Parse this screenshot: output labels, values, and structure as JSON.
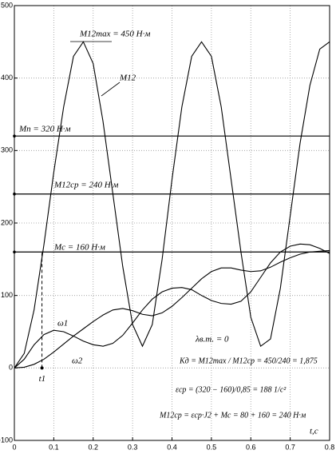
{
  "chart_data": {
    "type": "line",
    "x": [
      0,
      0.025,
      0.05,
      0.075,
      0.1,
      0.125,
      0.15,
      0.175,
      0.2,
      0.225,
      0.25,
      0.275,
      0.3,
      0.325,
      0.35,
      0.375,
      0.4,
      0.425,
      0.45,
      0.475,
      0.5,
      0.525,
      0.55,
      0.575,
      0.6,
      0.625,
      0.65,
      0.675,
      0.7,
      0.725,
      0.75,
      0.775,
      0.8
    ],
    "series": [
      {
        "name": "M12",
        "color": "#000000",
        "values": [
          0,
          20,
          80,
          170,
          270,
          360,
          430,
          450,
          420,
          340,
          240,
          140,
          60,
          30,
          60,
          150,
          260,
          360,
          430,
          450,
          430,
          360,
          260,
          160,
          70,
          30,
          40,
          110,
          210,
          310,
          390,
          440,
          450
        ]
      },
      {
        "name": "ω1",
        "color": "#000000",
        "values": [
          0,
          12,
          32,
          46,
          52,
          50,
          44,
          37,
          32,
          30,
          34,
          45,
          62,
          80,
          95,
          105,
          110,
          111,
          108,
          100,
          93,
          89,
          88,
          92,
          105,
          125,
          145,
          160,
          168,
          171,
          170,
          165,
          158
        ]
      },
      {
        "name": "ω2",
        "color": "#000000",
        "values": [
          0,
          1,
          5,
          12,
          22,
          33,
          44,
          54,
          64,
          73,
          80,
          82,
          79,
          74,
          72,
          76,
          85,
          97,
          110,
          123,
          133,
          138,
          138,
          135,
          133,
          134,
          139,
          146,
          152,
          157,
          160,
          161,
          162
        ]
      }
    ],
    "hlines": [
      320,
      240,
      160
    ],
    "t1": 0.07,
    "t1_label": "t1",
    "xlim": [
      0,
      0.8
    ],
    "ylim": [
      -100,
      500
    ],
    "xticks": [
      0,
      0.1,
      0.2,
      0.3,
      0.4,
      0.5,
      0.6,
      0.7,
      0.8
    ],
    "yticks": [
      -100,
      0,
      100,
      200,
      300,
      400,
      500
    ],
    "grid": true,
    "xlabel": "t,c",
    "annotations": [
      "M12max = 450 Н·м",
      "Mп = 320 Н·м",
      "M12ср = 240 Н·м",
      "Mс = 160 Н·м",
      "λв.т. = 0",
      "Kд = M12max / M12ср = 450/240 = 1,875",
      "εср = (320 − 160)/0,85 = 188 1/c²",
      "M12ср = εср·J2 + Mc = 80 + 160 = 240 Н·м"
    ]
  }
}
